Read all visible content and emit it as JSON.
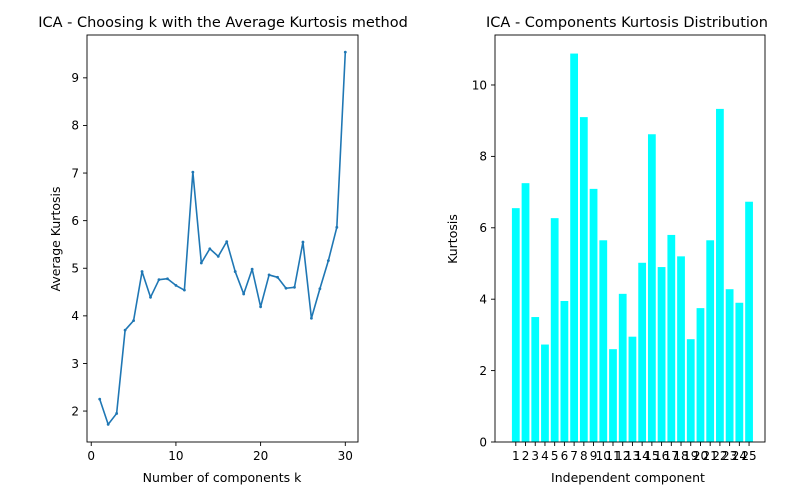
{
  "chart_data": [
    {
      "type": "line",
      "title": "ICA - Choosing k with the Average Kurtosis method",
      "xlabel": "Number of components k",
      "ylabel": "Average Kurtosis",
      "xlim": [
        -0.5,
        31.5
      ],
      "ylim": [
        1.35,
        9.9
      ],
      "xticks": [
        0,
        10,
        20,
        30
      ],
      "yticks": [
        2,
        3,
        4,
        5,
        6,
        7,
        8,
        9
      ],
      "color": "#1f77b4",
      "grid": false,
      "x": [
        1,
        2,
        3,
        4,
        5,
        6,
        7,
        8,
        9,
        10,
        11,
        12,
        13,
        14,
        15,
        16,
        17,
        18,
        19,
        20,
        21,
        22,
        23,
        24,
        25,
        26,
        27,
        28,
        29,
        30
      ],
      "y": [
        2.25,
        1.72,
        1.95,
        3.7,
        3.9,
        4.93,
        4.39,
        4.76,
        4.78,
        4.64,
        4.54,
        7.02,
        5.11,
        5.41,
        5.25,
        5.56,
        4.93,
        4.46,
        4.98,
        4.19,
        4.86,
        4.81,
        4.58,
        4.6,
        5.55,
        3.95,
        4.57,
        5.16,
        5.86,
        9.54
      ]
    },
    {
      "type": "bar",
      "title": "ICA - Components Kurtosis Distribution",
      "xlabel": "Independent component",
      "ylabel": "Kurtosis",
      "ylim": [
        0,
        11.4
      ],
      "yticks": [
        0,
        2,
        4,
        6,
        8,
        10
      ],
      "color": "#00ffff",
      "grid": false,
      "categories": [
        "1",
        "2",
        "3",
        "4",
        "5",
        "6",
        "7",
        "8",
        "9",
        "10",
        "11",
        "12",
        "13",
        "14",
        "15",
        "16",
        "17",
        "18",
        "19",
        "20",
        "21",
        "22",
        "23",
        "24",
        "25"
      ],
      "values": [
        6.55,
        7.25,
        3.5,
        2.73,
        6.27,
        3.95,
        10.88,
        9.1,
        7.09,
        5.65,
        2.6,
        4.15,
        2.95,
        5.02,
        8.62,
        4.9,
        5.8,
        5.2,
        2.88,
        3.75,
        5.65,
        9.33,
        4.28,
        3.9,
        6.73
      ]
    }
  ]
}
